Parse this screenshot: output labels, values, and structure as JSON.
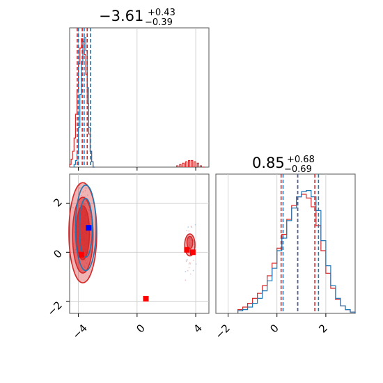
{
  "chart_data": {
    "type": "corner",
    "titles": [
      {
        "value": "−3.61",
        "plus": "+0.43",
        "minus": "−0.39"
      },
      {
        "value": "0.85",
        "plus": "+0.68",
        "minus": "−0.69"
      }
    ],
    "ticks": {
      "p1_x": [
        "−4",
        "0",
        "4"
      ],
      "p2_y": [
        "−2",
        "0",
        "2"
      ],
      "p3_x": [
        "−2",
        "0",
        "2"
      ]
    },
    "axes": {
      "param1_range": [
        -4.6,
        4.9
      ],
      "param2_range": [
        -2.5,
        3.2
      ]
    },
    "colors": {
      "blue": "#1f77b4",
      "red": "#d62728",
      "blue_marker": "#0000ff",
      "red_marker": "#ff0000",
      "grid": "#c8c8c8"
    },
    "grid": true,
    "series": [
      {
        "hist1": {
          "bins": [
            -4.3,
            -4.2,
            -4.1,
            -4.0,
            -3.9,
            -3.8,
            -3.7,
            -3.6,
            -3.5,
            -3.4,
            -3.3,
            -3.2,
            -3.1,
            -3.0
          ],
          "counts": [
            0.02,
            0.05,
            0.12,
            0.3,
            0.55,
            0.8,
            0.95,
            0.98,
            0.88,
            0.6,
            0.3,
            0.12,
            0.04,
            0.0
          ]
        },
        "quantiles_p1": [
          -4.0,
          -3.61,
          -3.18
        ],
        "quantiles_p2": [
          0.25,
          0.85,
          1.7
        ],
        "hist2": {
          "bins": [
            -1.6,
            -1.4,
            -1.2,
            -1.0,
            -0.8,
            -0.6,
            -0.4,
            -0.2,
            0.0,
            0.2,
            0.4,
            0.6,
            0.8,
            1.0,
            1.2,
            1.4,
            1.6,
            1.8,
            2.0,
            2.2,
            2.4,
            2.6,
            2.8,
            3.0
          ],
          "counts": [
            0.02,
            0.03,
            0.05,
            0.08,
            0.12,
            0.18,
            0.26,
            0.36,
            0.5,
            0.6,
            0.74,
            0.84,
            0.93,
            0.97,
            0.98,
            0.93,
            0.82,
            0.58,
            0.38,
            0.22,
            0.12,
            0.06,
            0.03,
            0.01
          ]
        },
        "marker": [
          -3.3,
          1.0
        ]
      },
      {
        "hist1": {
          "bins": [
            -4.6,
            -4.5,
            -4.4,
            -4.3,
            -4.2,
            -4.1,
            -4.0,
            -3.9,
            -3.8,
            -3.7,
            -3.6,
            -3.5,
            -3.4,
            -3.3,
            -3.2,
            -3.1,
            -3.0,
            2.7,
            2.9,
            3.1,
            3.3,
            3.5,
            3.7,
            3.9,
            4.1,
            4.3,
            4.5
          ],
          "counts": [
            0.02,
            0.06,
            0.12,
            0.22,
            0.4,
            0.58,
            0.78,
            0.9,
            0.97,
            0.95,
            0.85,
            0.7,
            0.48,
            0.25,
            0.12,
            0.04,
            0.0,
            0.01,
            0.02,
            0.03,
            0.04,
            0.05,
            0.05,
            0.04,
            0.03,
            0.01,
            0.0
          ]
        },
        "quantiles_p1": [
          -4.08,
          -3.74,
          -3.4
        ],
        "quantiles_p2": [
          0.17,
          0.85,
          1.55
        ],
        "hist2": {
          "bins": [
            -1.6,
            -1.4,
            -1.2,
            -1.0,
            -0.8,
            -0.6,
            -0.4,
            -0.2,
            0.0,
            0.2,
            0.4,
            0.6,
            0.8,
            1.0,
            1.2,
            1.4,
            1.6,
            1.8,
            2.0,
            2.2,
            2.4,
            2.6,
            2.8,
            3.0
          ],
          "counts": [
            0.03,
            0.05,
            0.08,
            0.12,
            0.16,
            0.22,
            0.3,
            0.4,
            0.52,
            0.63,
            0.75,
            0.86,
            0.93,
            0.95,
            0.92,
            0.85,
            0.7,
            0.5,
            0.32,
            0.2,
            0.11,
            0.06,
            0.03,
            0.01
          ]
        },
        "markers": [
          [
            -3.8,
            -0.1
          ],
          [
            3.4,
            0.1
          ],
          [
            3.8,
            0.0
          ],
          [
            0.6,
            -1.9
          ]
        ]
      }
    ]
  }
}
